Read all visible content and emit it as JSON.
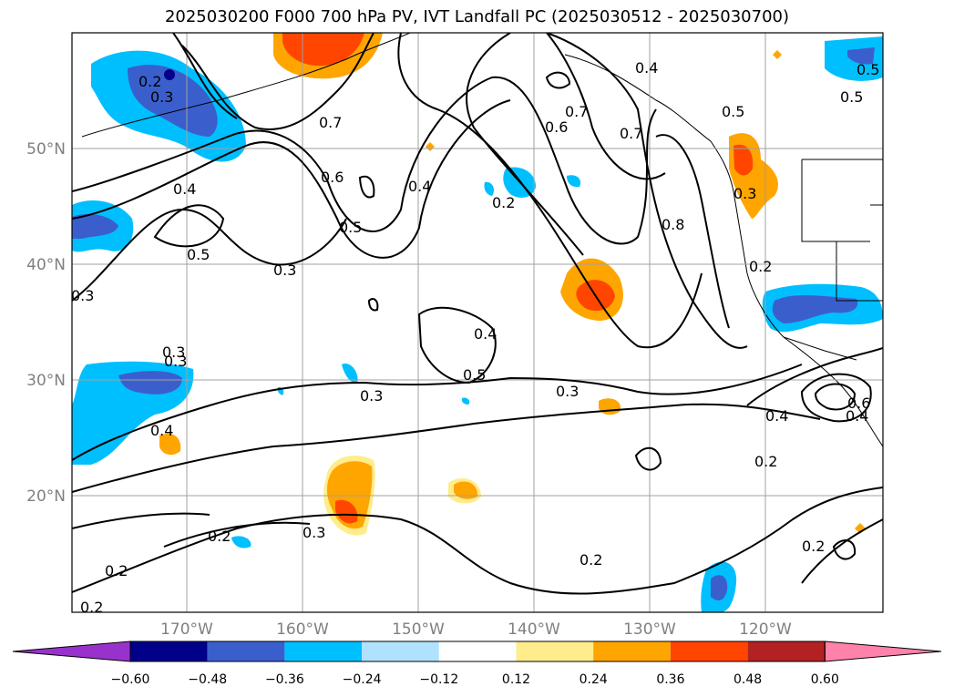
{
  "title": "2025030200 F000 700 hPa PV, IVT Landfall PC (2025030512 - 2025030700)",
  "lat_labels": [
    "50°N",
    "40°N",
    "30°N",
    "20°N"
  ],
  "lon_labels": [
    "170°W",
    "160°W",
    "150°W",
    "140°W",
    "130°W",
    "120°W"
  ],
  "colorbar": {
    "levels": [
      "−0.60",
      "−0.48",
      "−0.36",
      "−0.24",
      "−0.12",
      "0.12",
      "0.24",
      "0.36",
      "0.48",
      "0.60"
    ],
    "colors": [
      "#9932CC",
      "#00008B",
      "#3A5FCD",
      "#00BFFF",
      "#B0E2FF",
      "#FFFFFF",
      "#FFEC8B",
      "#FFA500",
      "#FF4500",
      "#B22222",
      "#FF82AB"
    ]
  },
  "contour_labels": [
    "0.2",
    "0.3",
    "0.4",
    "0.7",
    "0.6",
    "0.5",
    "0.3",
    "0.4",
    "0.5",
    "0.3",
    "0.2",
    "0.4",
    "0.7",
    "0.7",
    "0.4",
    "0.5",
    "0.6",
    "0.8",
    "0.3",
    "0.2",
    "0.4",
    "0.5",
    "0.3",
    "0.3",
    "0.3",
    "0.4",
    "0.2",
    "0.4",
    "0.6",
    "0.2",
    "0.2",
    "0.3",
    "0.2",
    "0.2",
    "0.2",
    "0.3",
    "0.5",
    "0.5"
  ]
}
